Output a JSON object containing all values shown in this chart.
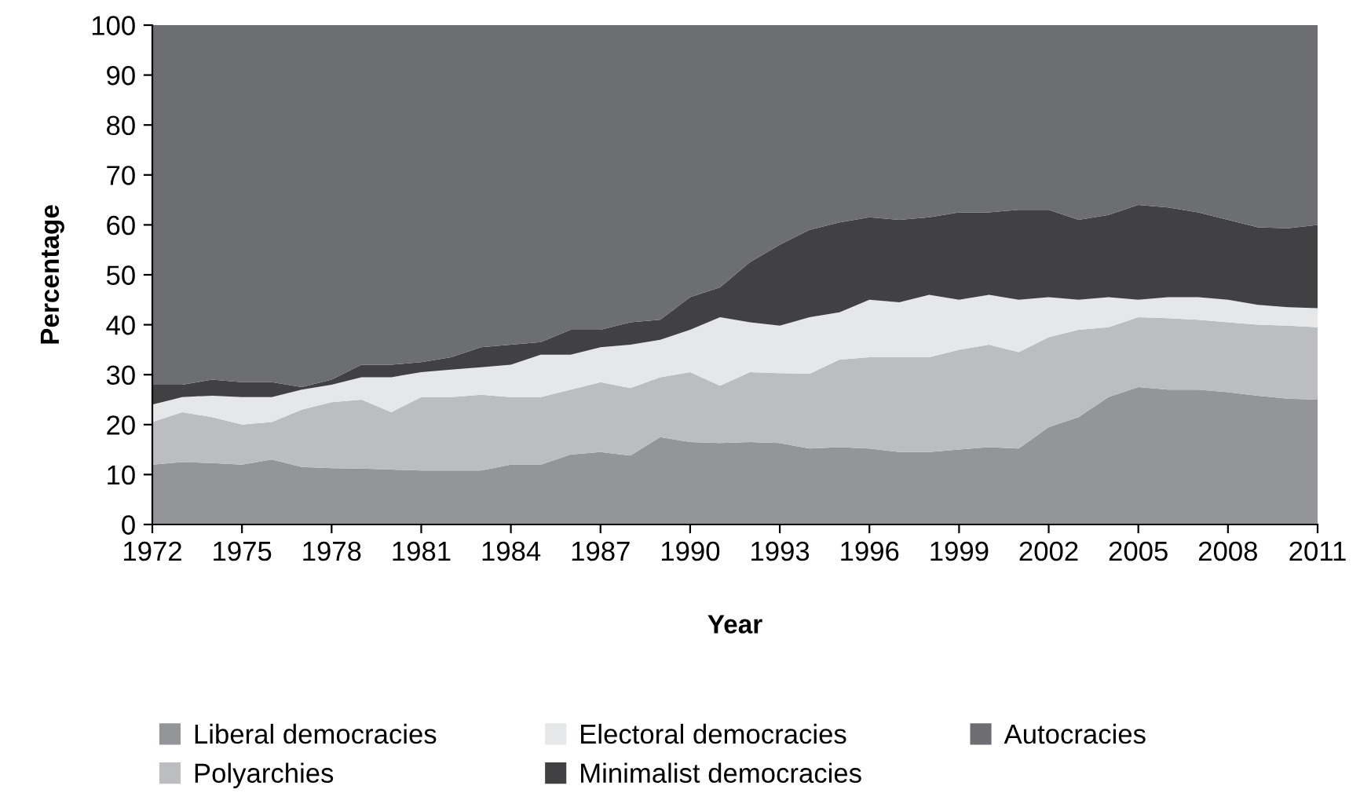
{
  "chart_data": {
    "type": "area",
    "stacked": true,
    "xlabel": "Year",
    "ylabel": "Percentage",
    "x": [
      1972,
      1973,
      1974,
      1975,
      1976,
      1977,
      1978,
      1979,
      1980,
      1981,
      1982,
      1983,
      1984,
      1985,
      1986,
      1987,
      1988,
      1989,
      1990,
      1991,
      1992,
      1993,
      1994,
      1995,
      1996,
      1997,
      1998,
      1999,
      2000,
      2001,
      2002,
      2003,
      2004,
      2005,
      2006,
      2007,
      2008,
      2009,
      2010,
      2011
    ],
    "series": [
      {
        "name": "Liberal democracies",
        "color": "#939598",
        "values": [
          12,
          12.5,
          12.3,
          12,
          13,
          11.5,
          11.3,
          11.2,
          11,
          10.8,
          10.8,
          10.8,
          12,
          12,
          14,
          14.5,
          13.8,
          17.5,
          16.5,
          16.3,
          16.5,
          16.3,
          15.2,
          15.5,
          15.2,
          14.5,
          14.5,
          15,
          15.5,
          15.2,
          19.5,
          21.5,
          25.5,
          27.5,
          27,
          27,
          26.5,
          25.8,
          25.2,
          25
        ]
      },
      {
        "name": "Polyarchies",
        "color": "#bcbdc0",
        "values": [
          8.5,
          10,
          9.2,
          8,
          7.5,
          11.5,
          13.2,
          13.8,
          11.5,
          14.7,
          14.7,
          15.2,
          13.5,
          13.5,
          13,
          14,
          13.5,
          12,
          14,
          11.5,
          14,
          14,
          15,
          17.5,
          18.3,
          19,
          19,
          20,
          20.5,
          19.3,
          18,
          17.5,
          14,
          14,
          14.3,
          14,
          14,
          14.2,
          14.6,
          14.5
        ]
      },
      {
        "name": "Electoral democracies",
        "color": "#e6e7e8",
        "values": [
          3.5,
          3,
          4.3,
          5.5,
          5,
          4,
          3.5,
          4.5,
          7,
          5,
          5.5,
          5.5,
          6.5,
          8.5,
          7,
          7,
          8.7,
          7.5,
          8.5,
          13.7,
          10,
          9.5,
          11.3,
          9.5,
          11.5,
          11,
          12.5,
          10,
          10,
          10.5,
          8,
          6,
          6,
          3.5,
          4.2,
          4.5,
          4.5,
          4,
          3.7,
          3.8
        ]
      },
      {
        "name": "Minimalist democracies",
        "color": "#414042",
        "values": [
          4,
          2.5,
          3.2,
          3,
          3,
          0.5,
          1,
          2.5,
          2.5,
          2,
          2.5,
          4,
          4,
          2.5,
          5,
          3.5,
          4.5,
          4,
          6.5,
          6,
          12,
          16.2,
          17.5,
          18,
          16.5,
          16.5,
          15.5,
          17.5,
          16.5,
          18,
          17.5,
          16,
          16.5,
          19,
          18,
          17,
          16,
          15.5,
          15.8,
          16.7
        ]
      },
      {
        "name": "Autocracies",
        "color": "#6d6e71",
        "values": [
          72,
          72,
          71,
          71.5,
          71.5,
          72.5,
          71,
          68,
          68,
          67.5,
          66.5,
          64.5,
          64,
          63.5,
          61,
          61,
          59.5,
          59,
          54.5,
          52.5,
          47.5,
          44,
          41,
          39.5,
          38.5,
          39,
          38.5,
          37.5,
          37.5,
          37,
          37,
          39,
          38,
          36,
          36.5,
          37.5,
          39,
          40.5,
          40.7,
          40
        ]
      }
    ],
    "xlim": [
      1972,
      2011
    ],
    "xticks": [
      1972,
      1975,
      1978,
      1981,
      1984,
      1987,
      1990,
      1993,
      1996,
      1999,
      2002,
      2005,
      2008,
      2011
    ],
    "ylim": [
      0,
      100
    ],
    "yticks": [
      0,
      10,
      20,
      30,
      40,
      50,
      60,
      70,
      80,
      90,
      100
    ],
    "legend": "bottom"
  }
}
